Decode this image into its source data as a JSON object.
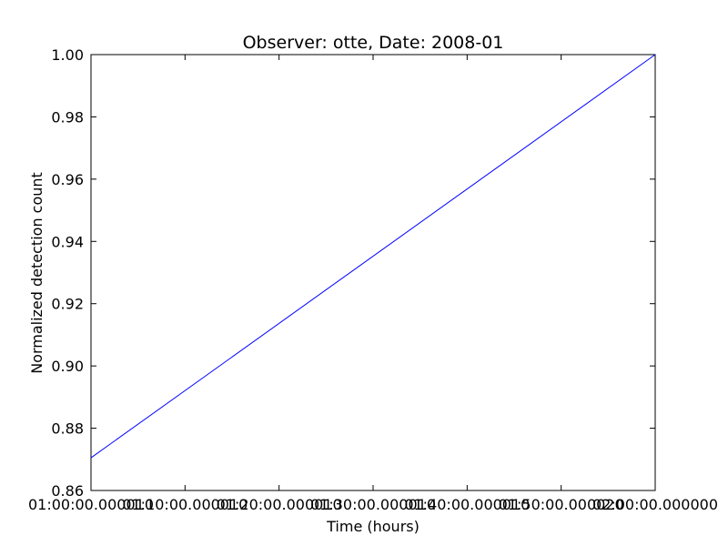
{
  "chart_data": {
    "type": "line",
    "title": "Observer: otte, Date: 2008-01",
    "xlabel": "Time (hours)",
    "ylabel": "Normalized detection count",
    "x_ticks": [
      "01:00:00.000010",
      "01:10:00.000010",
      "01:20:00.000010",
      "01:30:00.000010",
      "01:40:00.000010",
      "01:50:00.000020",
      "02:00:00.000000"
    ],
    "y_ticks": [
      "0.86",
      "0.88",
      "0.90",
      "0.92",
      "0.94",
      "0.96",
      "0.98",
      "1.00"
    ],
    "xlim": [
      "01:00:00",
      "02:00:00"
    ],
    "ylim": [
      0.86,
      1.0
    ],
    "grid": false,
    "series": [
      {
        "color": "#0000ff",
        "x": [
          "01:00:00",
          "02:00:00"
        ],
        "y": [
          0.8705,
          1.0
        ]
      }
    ]
  }
}
